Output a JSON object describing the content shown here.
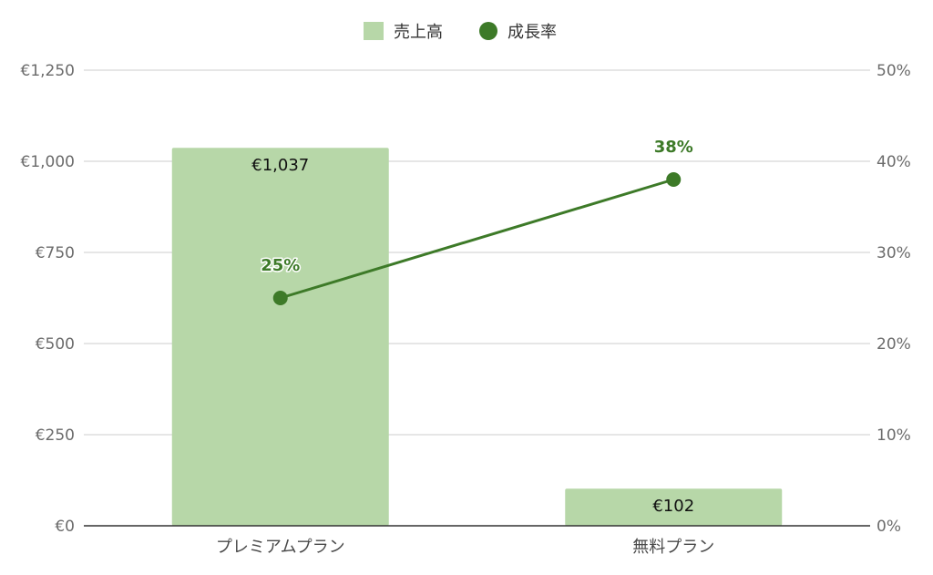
{
  "chart_data": {
    "type": "bar",
    "categories": [
      "プレミアムプラン",
      "無料プラン"
    ],
    "series": [
      {
        "name": "売上高",
        "type": "bar",
        "axis": "left",
        "values": [
          1037,
          102
        ],
        "labels": [
          "€1,037",
          "€102"
        ]
      },
      {
        "name": "成長率",
        "type": "line",
        "axis": "right",
        "values": [
          25,
          38
        ],
        "labels": [
          "25%",
          "38%"
        ]
      }
    ],
    "y_left": {
      "ylim": [
        0,
        1250
      ],
      "ticks": [
        0,
        250,
        500,
        750,
        1000,
        1250
      ],
      "tick_labels": [
        "€0",
        "€250",
        "€500",
        "€750",
        "€1,000",
        "€1,250"
      ]
    },
    "y_right": {
      "ylim": [
        0,
        50
      ],
      "ticks": [
        0,
        10,
        20,
        30,
        40,
        50
      ],
      "tick_labels": [
        "0%",
        "10%",
        "20%",
        "30%",
        "40%",
        "50%"
      ]
    },
    "grid": true,
    "legend": "top-center",
    "colors": {
      "bar": "#b7d7a8",
      "line": "#3d7a28",
      "grid": "#cccccc",
      "axis": "#333333"
    }
  }
}
